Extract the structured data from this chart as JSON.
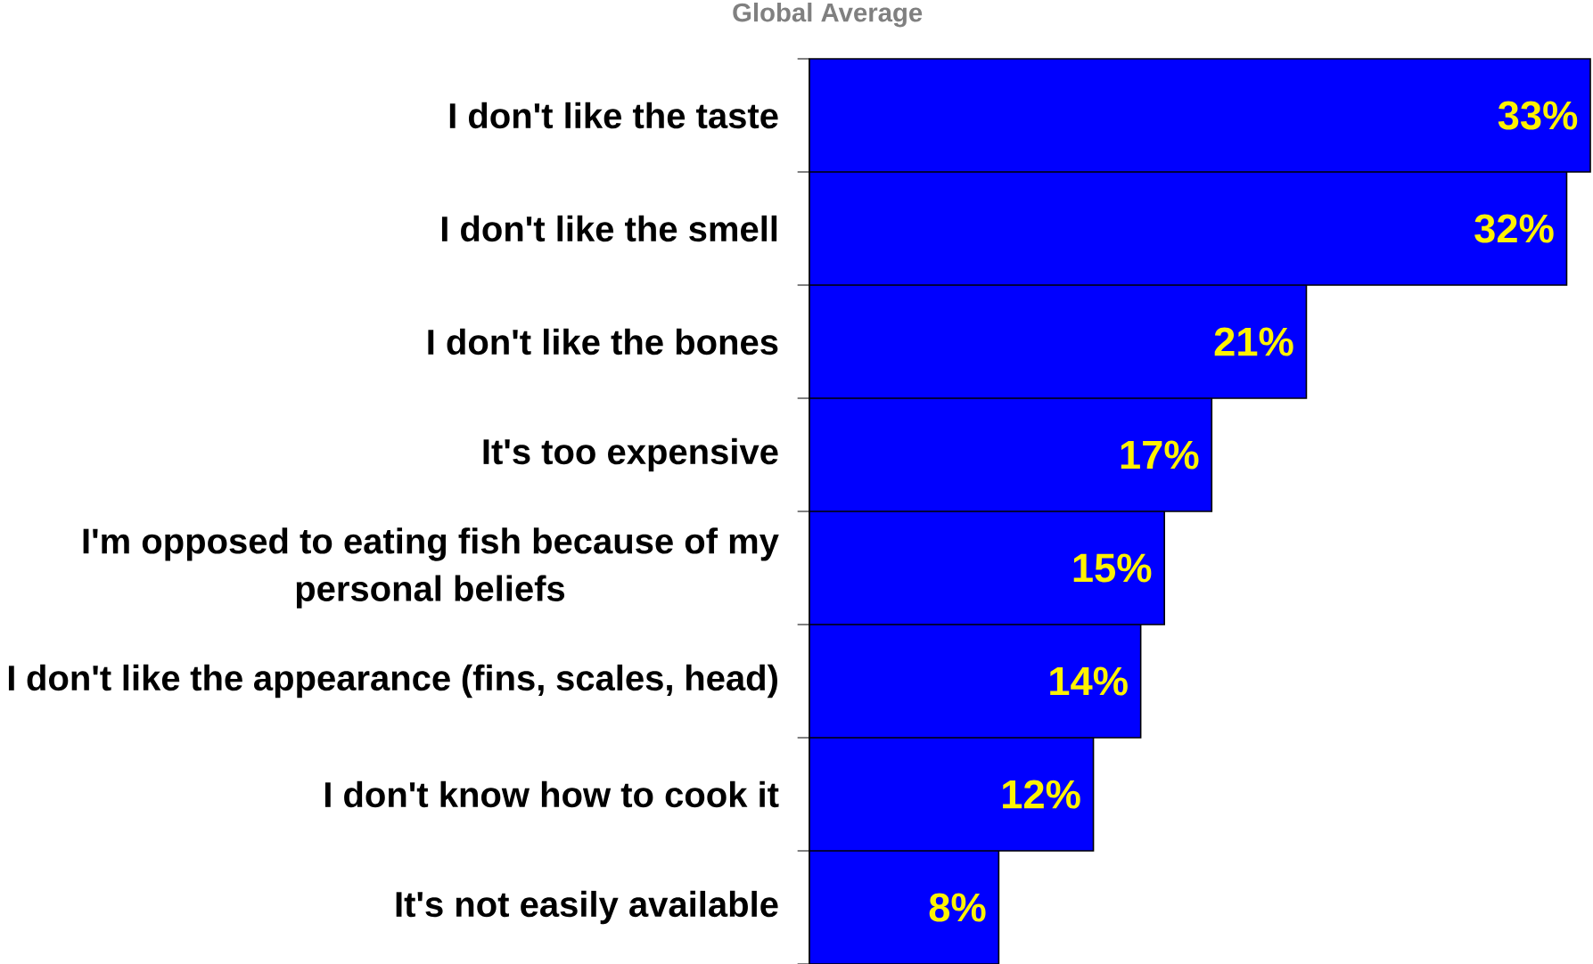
{
  "chart_data": {
    "type": "bar",
    "orientation": "horizontal",
    "title": "Global Average",
    "categories": [
      "I don't like the taste",
      "I don't like the smell",
      "I don't like the bones",
      "It's too expensive",
      "I'm opposed to eating fish because of my personal beliefs",
      "I don't like the appearance (fins, scales, head)",
      "I don't know how to cook it",
      "It's not easily available"
    ],
    "values": [
      33,
      32,
      21,
      17,
      15,
      14,
      12,
      8
    ],
    "value_labels": [
      "33%",
      "32%",
      "21%",
      "17%",
      "15%",
      "14%",
      "12%",
      "8%"
    ],
    "color": "#0000ff"
  }
}
